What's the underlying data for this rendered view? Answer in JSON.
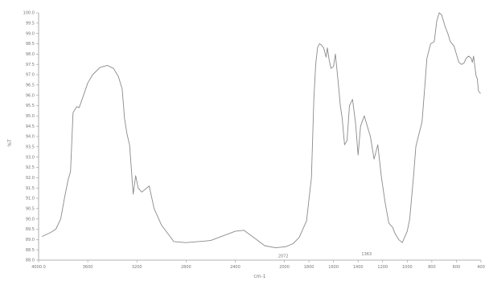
{
  "chart_data": {
    "type": "line",
    "title": "",
    "xlabel": "cm-1",
    "ylabel": "%T",
    "xlim": [
      4000,
      400
    ],
    "ylim": [
      88.0,
      100.0
    ],
    "x_ticks": [
      {
        "value": 4000,
        "label": "4000.0"
      },
      {
        "value": 3600,
        "label": "3600"
      },
      {
        "value": 3200,
        "label": "3200"
      },
      {
        "value": 2800,
        "label": "2800"
      },
      {
        "value": 2400,
        "label": "2400"
      },
      {
        "value": 2000,
        "label": "2000"
      },
      {
        "value": 1800,
        "label": "1800"
      },
      {
        "value": 1600,
        "label": "1600"
      },
      {
        "value": 1400,
        "label": "1400"
      },
      {
        "value": 1200,
        "label": "1200"
      },
      {
        "value": 1000,
        "label": "1000"
      },
      {
        "value": 800,
        "label": "800"
      },
      {
        "value": 600,
        "label": "600"
      },
      {
        "value": 400,
        "label": "400"
      }
    ],
    "y_ticks": [
      {
        "value": 100.0,
        "label": "100.0"
      },
      {
        "value": 99.5,
        "label": "99.5"
      },
      {
        "value": 99.0,
        "label": "99.0"
      },
      {
        "value": 98.5,
        "label": "98.5"
      },
      {
        "value": 98.0,
        "label": "98.0"
      },
      {
        "value": 97.5,
        "label": "97.5"
      },
      {
        "value": 97.0,
        "label": "97.0"
      },
      {
        "value": 96.5,
        "label": "96.5"
      },
      {
        "value": 96.0,
        "label": "96.0"
      },
      {
        "value": 95.5,
        "label": "95.5"
      },
      {
        "value": 95.0,
        "label": "95.0"
      },
      {
        "value": 94.5,
        "label": "94.5"
      },
      {
        "value": 94.0,
        "label": "94.0"
      },
      {
        "value": 93.5,
        "label": "93.5"
      },
      {
        "value": 93.0,
        "label": "93.0"
      },
      {
        "value": 92.5,
        "label": "92.5"
      },
      {
        "value": 92.0,
        "label": "92.0"
      },
      {
        "value": 91.5,
        "label": "91.5"
      },
      {
        "value": 91.0,
        "label": "91.0"
      },
      {
        "value": 90.5,
        "label": "90.5"
      },
      {
        "value": 90.0,
        "label": "90.0"
      },
      {
        "value": 89.5,
        "label": "89.5"
      },
      {
        "value": 89.0,
        "label": "89.0"
      },
      {
        "value": 88.5,
        "label": "88.5"
      },
      {
        "value": 88.0,
        "label": "88.0"
      }
    ],
    "annotations": [
      {
        "x": 2009,
        "y": 88.6,
        "label": "2072"
      },
      {
        "x": 1331,
        "y": 88.7,
        "label": "1363"
      }
    ],
    "series": [
      {
        "color": "#8a8a8a",
        "points": [
          [
            3970,
            89.15
          ],
          [
            3900,
            89.35
          ],
          [
            3860,
            89.5
          ],
          [
            3820,
            90.0
          ],
          [
            3790,
            91.0
          ],
          [
            3760,
            91.9
          ],
          [
            3740,
            92.3
          ],
          [
            3720,
            95.15
          ],
          [
            3690,
            95.45
          ],
          [
            3670,
            95.4
          ],
          [
            3640,
            95.9
          ],
          [
            3600,
            96.6
          ],
          [
            3560,
            97.0
          ],
          [
            3500,
            97.35
          ],
          [
            3440,
            97.45
          ],
          [
            3390,
            97.3
          ],
          [
            3350,
            96.9
          ],
          [
            3320,
            96.3
          ],
          [
            3300,
            94.85
          ],
          [
            3280,
            94.1
          ],
          [
            3260,
            93.6
          ],
          [
            3230,
            91.2
          ],
          [
            3210,
            92.1
          ],
          [
            3190,
            91.5
          ],
          [
            3160,
            91.3
          ],
          [
            3100,
            91.6
          ],
          [
            3060,
            90.5
          ],
          [
            3000,
            89.7
          ],
          [
            2900,
            88.9
          ],
          [
            2800,
            88.85
          ],
          [
            2600,
            88.95
          ],
          [
            2400,
            89.4
          ],
          [
            2330,
            89.45
          ],
          [
            2250,
            89.1
          ],
          [
            2160,
            88.7
          ],
          [
            2072,
            88.6
          ],
          [
            1990,
            88.65
          ],
          [
            1930,
            88.8
          ],
          [
            1880,
            89.1
          ],
          [
            1820,
            89.9
          ],
          [
            1780,
            92.0
          ],
          [
            1760,
            95.8
          ],
          [
            1745,
            97.5
          ],
          [
            1730,
            98.3
          ],
          [
            1715,
            98.5
          ],
          [
            1700,
            98.45
          ],
          [
            1680,
            98.3
          ],
          [
            1660,
            97.85
          ],
          [
            1650,
            98.3
          ],
          [
            1635,
            97.7
          ],
          [
            1620,
            97.3
          ],
          [
            1600,
            97.4
          ],
          [
            1585,
            98.0
          ],
          [
            1560,
            96.5
          ],
          [
            1545,
            95.5
          ],
          [
            1530,
            94.9
          ],
          [
            1510,
            93.6
          ],
          [
            1490,
            93.8
          ],
          [
            1470,
            95.5
          ],
          [
            1445,
            95.8
          ],
          [
            1420,
            94.6
          ],
          [
            1400,
            93.1
          ],
          [
            1380,
            94.5
          ],
          [
            1350,
            95.0
          ],
          [
            1320,
            94.4
          ],
          [
            1300,
            94.0
          ],
          [
            1270,
            92.9
          ],
          [
            1240,
            93.6
          ],
          [
            1210,
            92.0
          ],
          [
            1180,
            90.8
          ],
          [
            1150,
            89.8
          ],
          [
            1120,
            89.6
          ],
          [
            1100,
            89.3
          ],
          [
            1070,
            89.0
          ],
          [
            1040,
            88.85
          ],
          [
            1000,
            89.4
          ],
          [
            980,
            90.0
          ],
          [
            950,
            92.0
          ],
          [
            930,
            93.5
          ],
          [
            910,
            94.0
          ],
          [
            880,
            94.7
          ],
          [
            860,
            96.2
          ],
          [
            840,
            97.8
          ],
          [
            810,
            98.5
          ],
          [
            780,
            98.6
          ],
          [
            760,
            99.6
          ],
          [
            740,
            100.0
          ],
          [
            720,
            99.9
          ],
          [
            690,
            99.3
          ],
          [
            670,
            99.0
          ],
          [
            650,
            98.6
          ],
          [
            620,
            98.4
          ],
          [
            600,
            98.0
          ],
          [
            580,
            97.6
          ],
          [
            560,
            97.5
          ],
          [
            540,
            97.55
          ],
          [
            520,
            97.8
          ],
          [
            500,
            97.9
          ],
          [
            480,
            97.8
          ],
          [
            470,
            97.6
          ],
          [
            460,
            97.9
          ],
          [
            450,
            97.4
          ],
          [
            440,
            96.95
          ],
          [
            430,
            96.8
          ],
          [
            420,
            96.2
          ],
          [
            405,
            96.1
          ]
        ]
      }
    ]
  }
}
